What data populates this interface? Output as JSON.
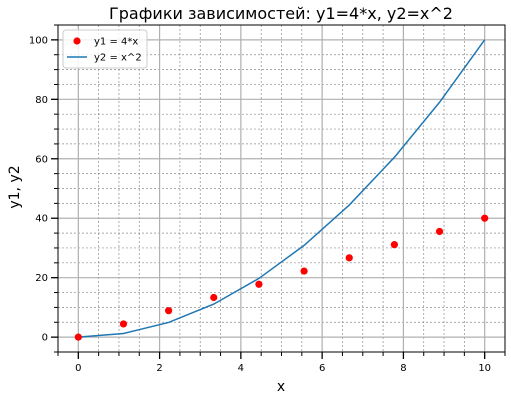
{
  "chart_data": {
    "type": "scatter+line",
    "title": "Графики зависимостей: y1=4*x, y2=x^2",
    "xlabel": "x",
    "ylabel": "y1, y2",
    "xlim": [
      -0.5,
      10.5
    ],
    "ylim": [
      -5,
      105
    ],
    "x_ticks": [
      0,
      2,
      4,
      6,
      8,
      10
    ],
    "y_ticks": [
      0,
      20,
      40,
      60,
      80,
      100
    ],
    "x_minor_step": 0.5,
    "y_minor_step": 5,
    "grid": true,
    "legend_position": "upper-left",
    "x": [
      0,
      1.111,
      2.222,
      3.333,
      4.444,
      5.556,
      6.667,
      7.778,
      8.889,
      10
    ],
    "series": [
      {
        "name": "y1 = 4*x",
        "kind": "scatter",
        "color": "#ff0000",
        "values": [
          0,
          4.44,
          8.89,
          13.33,
          17.78,
          22.22,
          26.67,
          31.11,
          35.56,
          40
        ]
      },
      {
        "name": "y2 = x^2",
        "kind": "line",
        "color": "#1f77b4",
        "values": [
          0,
          1.23,
          4.94,
          11.11,
          19.75,
          30.86,
          44.44,
          60.49,
          79.01,
          100
        ]
      }
    ]
  }
}
